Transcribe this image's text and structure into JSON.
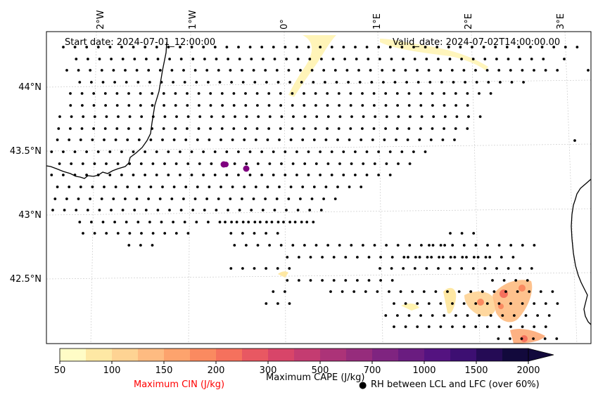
{
  "map": {
    "start_date": "Start date: 2024-07-01_12:00:00",
    "valid_date": "Valid_date: 2024-07-02T14:00:00.00",
    "lon_labels": [
      "2°W",
      "1°W",
      "0°",
      "1°E",
      "2°E",
      "3°E"
    ],
    "lat_labels": [
      "44°N",
      "43.5°N",
      "43°N",
      "42.5°N"
    ]
  },
  "colorbar": {
    "ticks": [
      "50",
      "100",
      "150",
      "200",
      "300",
      "500",
      "700",
      "1000",
      "1500",
      "2000"
    ],
    "colors": [
      "#fffcc6",
      "#fee8a4",
      "#fed393",
      "#febb81",
      "#fda36d",
      "#fa8a60",
      "#f5715d",
      "#e85862",
      "#d84569",
      "#c43c71",
      "#ac3378",
      "#962c7c",
      "#7f2480",
      "#6a1c80",
      "#541380",
      "#3d0f72",
      "#250b55",
      "#12093c"
    ],
    "cape_label": "Maximum CAPE (J/kg)",
    "cin_label": "Maximum CIN (J/kg)",
    "cin_color": "#ff0000",
    "rh_label": "RH between LCL and LFC (over 60%)",
    "rh_marker": "●"
  },
  "colors": {
    "coast": "#000000",
    "grid": "#cccccc",
    "cin_dot": "#800080",
    "dot": "#000000"
  }
}
